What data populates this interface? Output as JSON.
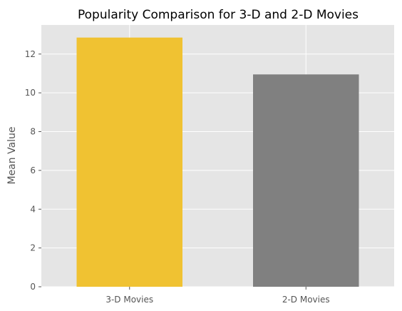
{
  "chart_data": {
    "type": "bar",
    "title": "Popularity Comparison for 3-D and 2-D Movies",
    "xlabel": "",
    "ylabel": "Mean Value",
    "categories": [
      "3-D Movies",
      "2-D Movies"
    ],
    "values": [
      12.85,
      10.95
    ],
    "bar_colors": [
      "#f0c232",
      "#808080"
    ],
    "ylim": [
      0,
      13.5
    ],
    "yticks": [
      "0",
      "2",
      "4",
      "6",
      "8",
      "10",
      "12"
    ],
    "grid": true,
    "background": "#e5e5e5",
    "grid_color": "#ffffff",
    "legend": "none"
  }
}
